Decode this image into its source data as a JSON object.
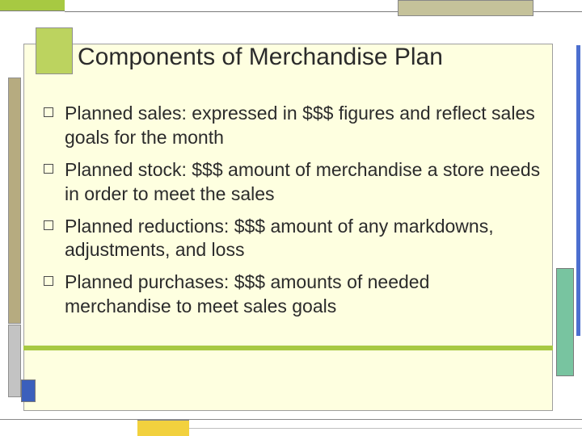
{
  "slide": {
    "title": "Components of Merchandise Plan",
    "bullets": [
      "Planned sales:  expressed in $$$ figures and reflect sales goals for the month",
      "Planned stock:  $$$ amount of merchandise a store needs in order to meet the sales",
      "Planned reductions:  $$$ amount of any markdowns, adjustments, and loss",
      "Planned purchases:  $$$ amounts of needed merchandise to meet sales goals"
    ]
  },
  "style": {
    "background_color": "#feffe0",
    "title_fontsize": 30,
    "body_fontsize": 23,
    "text_color": "#2b2b2b",
    "accent_green": "#a7c942",
    "accent_blue": "#3b5fbc",
    "accent_teal": "#78c4a0",
    "accent_yellow": "#f2d13e",
    "accent_olive": "#b6ab80",
    "accent_beige": "#c5c29a",
    "border_color": "#9e9e9e"
  }
}
